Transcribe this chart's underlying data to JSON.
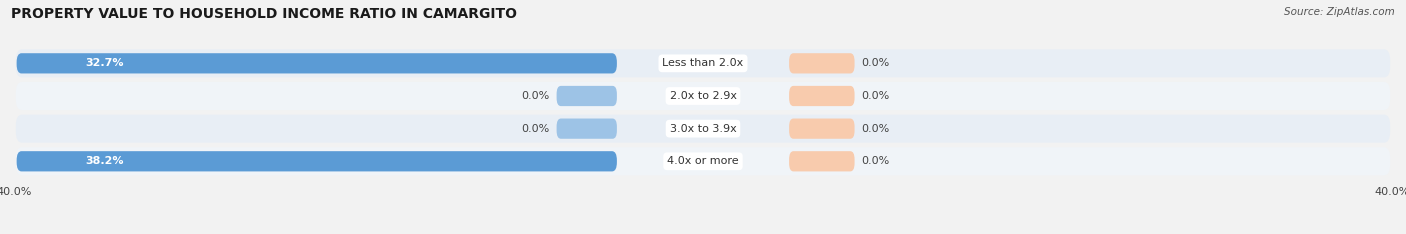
{
  "title": "PROPERTY VALUE TO HOUSEHOLD INCOME RATIO IN CAMARGITO",
  "source": "Source: ZipAtlas.com",
  "categories": [
    "Less than 2.0x",
    "2.0x to 2.9x",
    "3.0x to 3.9x",
    "4.0x or more"
  ],
  "without_mortgage": [
    32.7,
    0.0,
    0.0,
    38.2
  ],
  "with_mortgage": [
    0.0,
    0.0,
    0.0,
    0.0
  ],
  "xlim": 40.0,
  "color_without": "#5b9bd5",
  "color_without_light": "#9dc3e6",
  "color_with": "#f4b183",
  "color_with_light": "#f8cbad",
  "row_bg_even": "#e8eef5",
  "row_bg_odd": "#f0f4f8",
  "title_fontsize": 10,
  "source_fontsize": 7.5,
  "label_fontsize": 8,
  "tick_fontsize": 8,
  "background_color": "#f2f2f2",
  "zero_bar_width": 3.5,
  "with_mortgage_stub": 3.8
}
